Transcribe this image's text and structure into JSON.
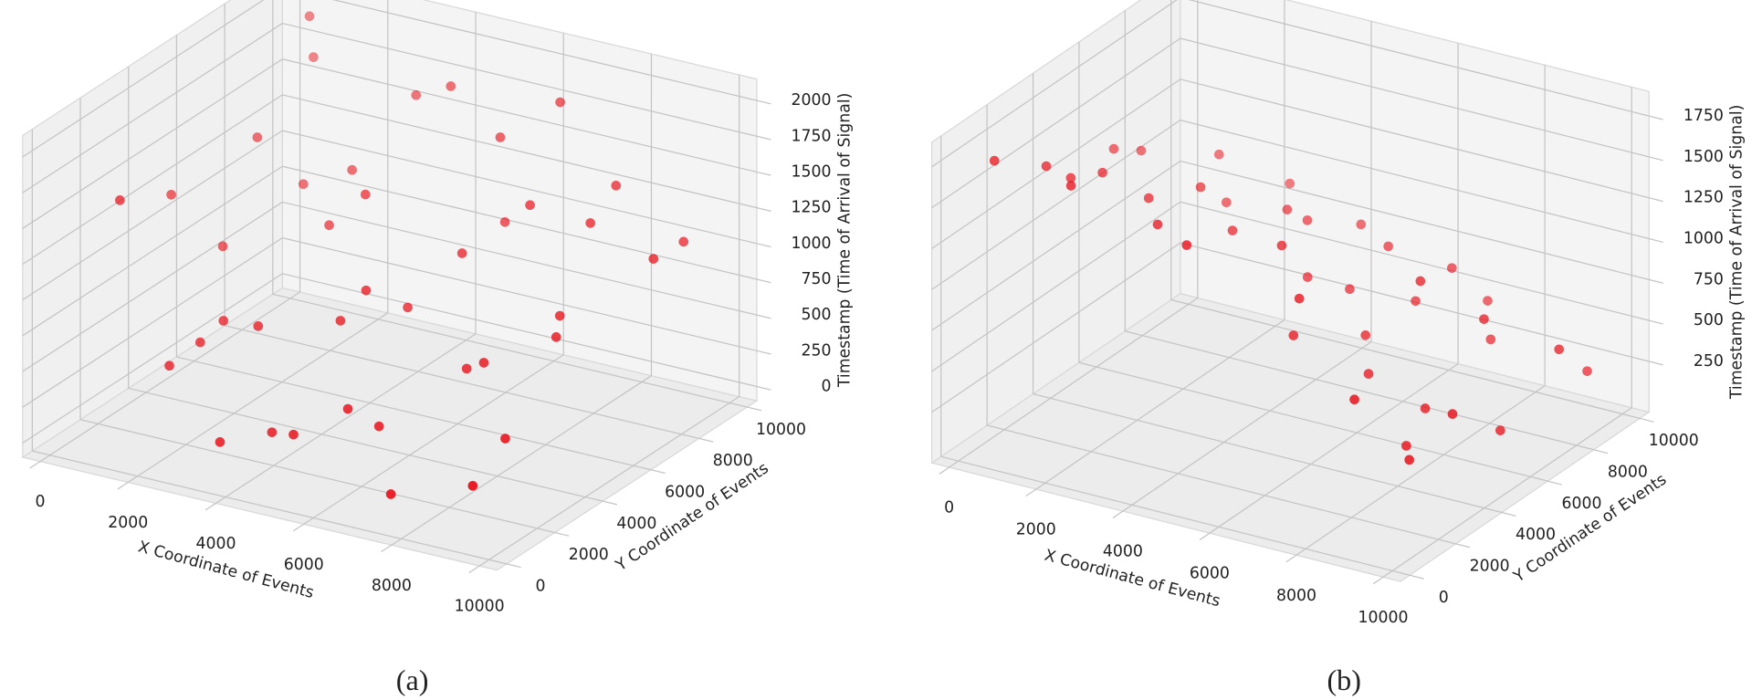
{
  "chart_data": [
    {
      "type": "scatter3d",
      "caption": "(a)",
      "x_label": "X Coordinate of Events",
      "y_label": "Y Coordinate of Events",
      "z_label": "Timestamp (Time of Arrival of Signal)",
      "color": "#e8121b",
      "xlim": [
        -400,
        10400
      ],
      "ylim": [
        -400,
        10400
      ],
      "zlim": [
        -100,
        2150
      ],
      "xticks": [
        0,
        2000,
        4000,
        6000,
        8000,
        10000
      ],
      "yticks": [
        0,
        2000,
        4000,
        6000,
        8000,
        10000
      ],
      "zticks": [
        0,
        250,
        500,
        750,
        1000,
        1250,
        1500,
        1750,
        2000
      ],
      "grid": true,
      "x": [
        500,
        1200,
        2500,
        3100,
        4200,
        5000,
        6100,
        7300,
        8200,
        9000,
        800,
        1900,
        2800,
        3600,
        4700,
        5600,
        6400,
        7100,
        8600,
        9500,
        300,
        1500,
        2200,
        3900,
        4400,
        5300,
        6800,
        7600,
        8900,
        9800,
        1000,
        2000,
        3300,
        4900,
        5800,
        6200,
        7800,
        8400,
        9300,
        600
      ],
      "y": [
        2000,
        5000,
        8000,
        3000,
        9000,
        1000,
        6000,
        4000,
        7500,
        2500,
        9500,
        1500,
        6500,
        500,
        3500,
        8500,
        2000,
        7000,
        5500,
        9000,
        4500,
        7800,
        3200,
        6000,
        1200,
        5200,
        8800,
        300,
        4800,
        7200,
        6800,
        2600,
        9200,
        4200,
        1800,
        7600,
        3800,
        8200,
        600,
        9700
      ],
      "z": [
        1500,
        900,
        1200,
        700,
        1800,
        300,
        1100,
        600,
        1300,
        400,
        1700,
        500,
        1000,
        200,
        800,
        1600,
        350,
        1400,
        900,
        1100,
        1250,
        1050,
        650,
        1350,
        250,
        750,
        1900,
        150,
        850,
        1200,
        1450,
        550,
        1650,
        950,
        450,
        1150,
        700,
        1500,
        300,
        1950
      ]
    },
    {
      "type": "scatter3d",
      "caption": "(b)",
      "x_label": "X Coordinate of Events",
      "y_label": "Y Coordinate of Events",
      "z_label": "Timestamp (Time of Arrival of Signal)",
      "color": "#e8121b",
      "xlim": [
        -400,
        10400
      ],
      "ylim": [
        -400,
        10400
      ],
      "zlim": [
        -60,
        1900
      ],
      "xticks": [
        0,
        2000,
        4000,
        6000,
        8000,
        10000
      ],
      "yticks": [
        0,
        2000,
        4000,
        6000,
        8000,
        10000
      ],
      "zticks": [
        250,
        500,
        750,
        1000,
        1250,
        1500,
        1750
      ],
      "grid": true,
      "x": [
        300,
        700,
        1200,
        1800,
        2400,
        3000,
        3600,
        4200,
        4800,
        5400,
        6000,
        6600,
        7200,
        7800,
        8400,
        9000,
        9600,
        500,
        1500,
        2600,
        3400,
        4400,
        5200,
        6200,
        7000,
        8000,
        8800,
        9400,
        1000,
        2000,
        3800,
        5600,
        6800,
        7600,
        9200,
        400,
        2200,
        4600,
        8200,
        6400
      ],
      "y": [
        1000,
        2500,
        4000,
        1500,
        6000,
        3000,
        7500,
        2000,
        5000,
        8500,
        3500,
        9000,
        6500,
        2500,
        7000,
        4500,
        8000,
        7000,
        8500,
        9500,
        5500,
        9200,
        7200,
        6000,
        9800,
        5200,
        3000,
        9600,
        3000,
        4500,
        8000,
        4000,
        5000,
        8800,
        6200,
        6000,
        7500,
        6500,
        4000,
        7800
      ],
      "z": [
        1700,
        1550,
        1400,
        1600,
        1200,
        1300,
        1000,
        1350,
        1100,
        800,
        1000,
        700,
        900,
        600,
        700,
        400,
        500,
        1200,
        1100,
        900,
        1050,
        800,
        650,
        550,
        450,
        300,
        250,
        200,
        1450,
        1250,
        900,
        700,
        450,
        350,
        150,
        1300,
        950,
        750,
        200,
        600
      ]
    }
  ]
}
